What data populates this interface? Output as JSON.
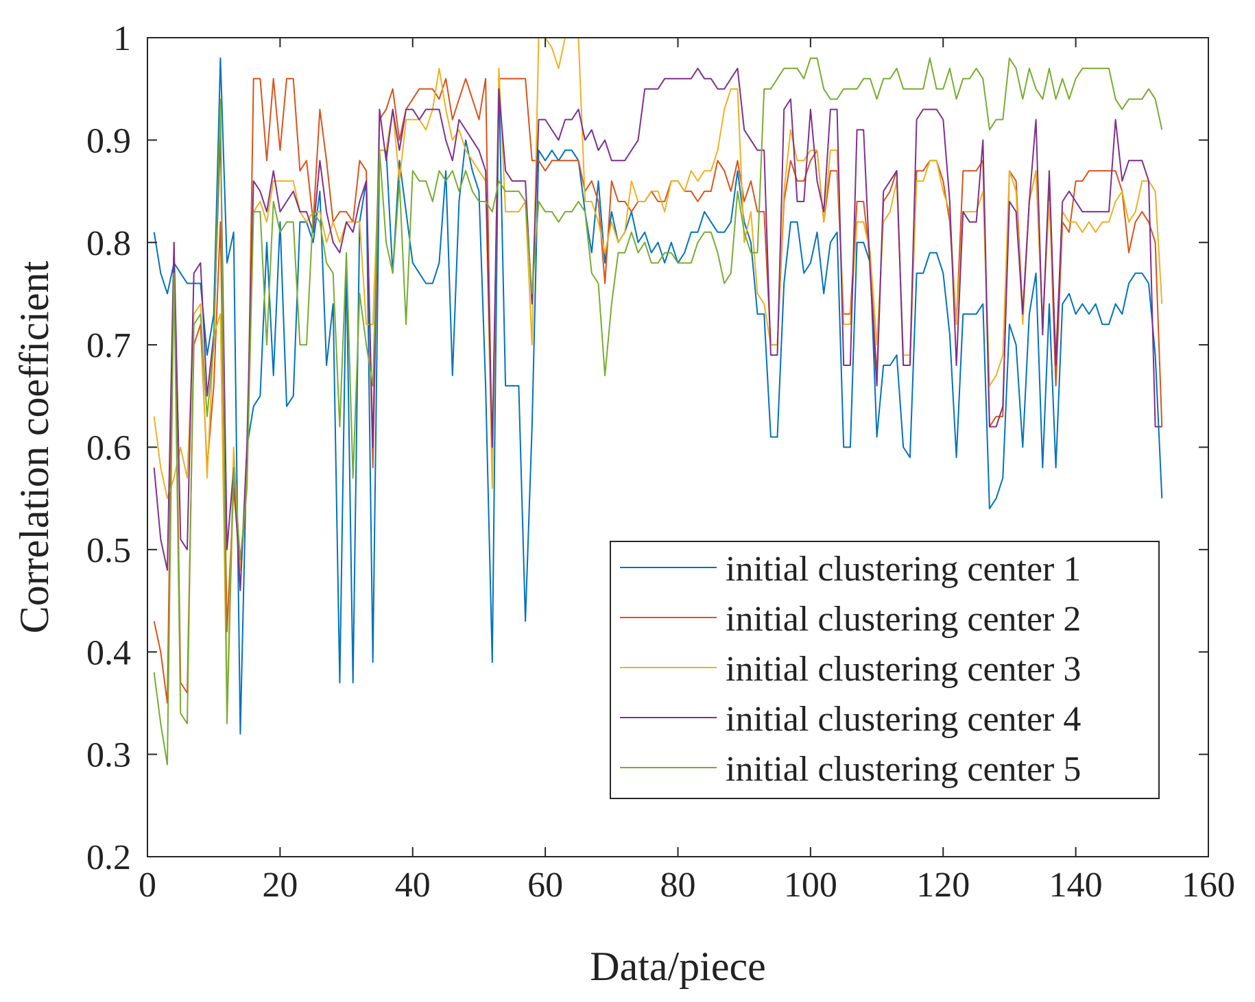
{
  "chart_data": {
    "type": "line",
    "title": "",
    "xlabel": "Data/piece",
    "ylabel": "Correlation coefficient",
    "xlim": [
      0,
      160
    ],
    "ylim": [
      0.2,
      1
    ],
    "xticks": [
      0,
      20,
      40,
      60,
      80,
      100,
      120,
      140,
      160
    ],
    "yticks": [
      0.2,
      0.3,
      0.4,
      0.5,
      0.6,
      0.7,
      0.8,
      0.9,
      1
    ],
    "xtick_labels": [
      "0",
      "20",
      "40",
      "60",
      "80",
      "100",
      "120",
      "140",
      "160"
    ],
    "ytick_labels": [
      "0.2",
      "0.3",
      "0.4",
      "0.5",
      "0.6",
      "0.7",
      "0.8",
      "0.9",
      "1"
    ],
    "grid": false,
    "legend_position": "bottom-right",
    "x": [
      1,
      2,
      3,
      4,
      5,
      6,
      7,
      8,
      9,
      10,
      11,
      12,
      13,
      14,
      15,
      16,
      17,
      18,
      19,
      20,
      21,
      22,
      23,
      24,
      25,
      26,
      27,
      28,
      29,
      30,
      31,
      32,
      33,
      34,
      35,
      36,
      37,
      38,
      39,
      40,
      41,
      42,
      43,
      44,
      45,
      46,
      47,
      48,
      49,
      50,
      51,
      52,
      53,
      54,
      55,
      56,
      57,
      58,
      59,
      60,
      61,
      62,
      63,
      64,
      65,
      66,
      67,
      68,
      69,
      70,
      71,
      72,
      73,
      74,
      75,
      76,
      77,
      78,
      79,
      80,
      81,
      82,
      83,
      84,
      85,
      86,
      87,
      88,
      89,
      90,
      91,
      92,
      93,
      94,
      95,
      96,
      97,
      98,
      99,
      100,
      101,
      102,
      103,
      104,
      105,
      106,
      107,
      108,
      109,
      110,
      111,
      112,
      113,
      114,
      115,
      116,
      117,
      118,
      119,
      120,
      121,
      122,
      123,
      124,
      125,
      126,
      127,
      128,
      129,
      130,
      131,
      132,
      133,
      134,
      135,
      136,
      137,
      138,
      139,
      140,
      141,
      142,
      143,
      144,
      145,
      146,
      147,
      148,
      149,
      150,
      151,
      152,
      153
    ],
    "series": [
      {
        "name": "initial clustering center 1",
        "color": "#0072BD",
        "values": [
          0.81,
          0.77,
          0.75,
          0.78,
          0.77,
          0.76,
          0.76,
          0.76,
          0.69,
          0.73,
          0.98,
          0.78,
          0.81,
          0.32,
          0.6,
          0.64,
          0.65,
          0.8,
          0.67,
          0.82,
          0.64,
          0.65,
          0.82,
          0.82,
          0.8,
          0.85,
          0.68,
          0.74,
          0.37,
          0.78,
          0.37,
          0.82,
          0.86,
          0.39,
          0.89,
          0.89,
          0.77,
          0.88,
          0.83,
          0.78,
          0.77,
          0.76,
          0.76,
          0.78,
          0.87,
          0.67,
          0.84,
          0.9,
          0.87,
          0.85,
          0.66,
          0.39,
          0.96,
          0.66,
          0.66,
          0.66,
          0.43,
          0.62,
          0.89,
          0.88,
          0.89,
          0.88,
          0.89,
          0.89,
          0.88,
          0.83,
          0.79,
          0.86,
          0.78,
          0.83,
          0.8,
          0.81,
          0.83,
          0.8,
          0.81,
          0.79,
          0.8,
          0.78,
          0.8,
          0.78,
          0.79,
          0.81,
          0.81,
          0.83,
          0.82,
          0.81,
          0.81,
          0.82,
          0.87,
          0.82,
          0.8,
          0.73,
          0.73,
          0.61,
          0.61,
          0.76,
          0.82,
          0.82,
          0.77,
          0.78,
          0.81,
          0.75,
          0.8,
          0.81,
          0.6,
          0.6,
          0.8,
          0.8,
          0.78,
          0.61,
          0.68,
          0.68,
          0.69,
          0.6,
          0.59,
          0.77,
          0.77,
          0.79,
          0.79,
          0.77,
          0.71,
          0.59,
          0.73,
          0.73,
          0.73,
          0.74,
          0.54,
          0.55,
          0.57,
          0.72,
          0.7,
          0.6,
          0.73,
          0.77,
          0.58,
          0.74,
          0.58,
          0.74,
          0.75,
          0.73,
          0.74,
          0.73,
          0.74,
          0.72,
          0.72,
          0.74,
          0.73,
          0.76,
          0.77,
          0.77,
          0.76,
          0.69,
          0.55
        ]
      },
      {
        "name": "initial clustering center 2",
        "color": "#D95319",
        "values": [
          0.43,
          0.4,
          0.35,
          0.8,
          0.37,
          0.36,
          0.7,
          0.72,
          0.58,
          0.66,
          0.82,
          0.42,
          0.56,
          0.48,
          0.56,
          0.96,
          0.96,
          0.88,
          0.96,
          0.89,
          0.96,
          0.96,
          0.87,
          0.88,
          0.82,
          0.93,
          0.88,
          0.82,
          0.83,
          0.83,
          0.82,
          0.88,
          0.87,
          0.58,
          0.92,
          0.93,
          0.95,
          0.9,
          0.93,
          0.94,
          0.95,
          0.95,
          0.95,
          0.94,
          0.96,
          0.92,
          0.94,
          0.96,
          0.94,
          0.92,
          0.96,
          0.58,
          0.96,
          0.96,
          0.96,
          0.96,
          0.96,
          0.88,
          0.88,
          0.87,
          0.88,
          0.88,
          0.88,
          0.88,
          0.88,
          0.85,
          0.86,
          0.84,
          0.76,
          0.86,
          0.84,
          0.84,
          0.83,
          0.84,
          0.84,
          0.85,
          0.84,
          0.84,
          0.86,
          0.86,
          0.85,
          0.85,
          0.84,
          0.85,
          0.85,
          0.88,
          0.87,
          0.85,
          0.88,
          0.84,
          0.86,
          0.83,
          0.83,
          0.7,
          0.7,
          0.84,
          0.88,
          0.86,
          0.86,
          0.88,
          0.89,
          0.82,
          0.87,
          0.87,
          0.73,
          0.73,
          0.84,
          0.84,
          0.78,
          0.67,
          0.84,
          0.85,
          0.87,
          0.68,
          0.68,
          0.87,
          0.87,
          0.88,
          0.88,
          0.86,
          0.82,
          0.72,
          0.87,
          0.87,
          0.87,
          0.88,
          0.62,
          0.63,
          0.63,
          0.87,
          0.86,
          0.73,
          0.84,
          0.87,
          0.72,
          0.85,
          0.66,
          0.82,
          0.81,
          0.86,
          0.86,
          0.87,
          0.87,
          0.87,
          0.87,
          0.87,
          0.85,
          0.79,
          0.82,
          0.83,
          0.82,
          0.8,
          0.62
        ]
      },
      {
        "name": "initial clustering center 3",
        "color": "#EDB120",
        "values": [
          0.63,
          0.58,
          0.55,
          0.57,
          0.6,
          0.57,
          0.73,
          0.74,
          0.57,
          0.71,
          0.73,
          0.34,
          0.6,
          0.48,
          0.58,
          0.83,
          0.84,
          0.82,
          0.86,
          0.86,
          0.86,
          0.86,
          0.83,
          0.82,
          0.83,
          0.83,
          0.8,
          0.82,
          0.8,
          0.82,
          0.82,
          0.82,
          0.72,
          0.72,
          0.89,
          0.89,
          0.93,
          0.86,
          0.92,
          0.92,
          0.92,
          0.91,
          0.93,
          0.97,
          0.93,
          0.9,
          0.91,
          0.89,
          0.88,
          0.87,
          0.86,
          0.56,
          0.97,
          0.83,
          0.83,
          0.83,
          0.84,
          0.7,
          1,
          1,
          0.99,
          0.97,
          1,
          1,
          1,
          0.84,
          0.84,
          0.82,
          0.79,
          0.82,
          0.8,
          0.81,
          0.86,
          0.84,
          0.84,
          0.85,
          0.85,
          0.83,
          0.86,
          0.86,
          0.85,
          0.87,
          0.86,
          0.87,
          0.87,
          0.89,
          0.93,
          0.95,
          0.95,
          0.8,
          0.83,
          0.75,
          0.74,
          0.7,
          0.7,
          0.85,
          0.91,
          0.88,
          0.88,
          0.89,
          0.89,
          0.82,
          0.89,
          0.89,
          0.72,
          0.72,
          0.82,
          0.82,
          0.79,
          0.7,
          0.82,
          0.83,
          0.86,
          0.69,
          0.69,
          0.86,
          0.86,
          0.88,
          0.88,
          0.85,
          0.83,
          0.72,
          0.83,
          0.83,
          0.83,
          0.85,
          0.66,
          0.67,
          0.69,
          0.87,
          0.85,
          0.72,
          0.84,
          0.87,
          0.72,
          0.84,
          0.69,
          0.83,
          0.82,
          0.82,
          0.81,
          0.82,
          0.81,
          0.82,
          0.82,
          0.84,
          0.85,
          0.82,
          0.83,
          0.86,
          0.86,
          0.85,
          0.74
        ]
      },
      {
        "name": "initial clustering center 4",
        "color": "#7E2F8E",
        "values": [
          0.58,
          0.51,
          0.48,
          0.8,
          0.51,
          0.5,
          0.77,
          0.78,
          0.65,
          0.71,
          0.91,
          0.5,
          0.58,
          0.46,
          0.6,
          0.86,
          0.85,
          0.83,
          0.87,
          0.83,
          0.84,
          0.85,
          0.83,
          0.83,
          0.81,
          0.88,
          0.83,
          0.8,
          0.79,
          0.82,
          0.81,
          0.84,
          0.86,
          0.6,
          0.93,
          0.88,
          0.93,
          0.89,
          0.93,
          0.93,
          0.92,
          0.93,
          0.93,
          0.93,
          0.9,
          0.88,
          0.92,
          0.91,
          0.9,
          0.89,
          0.87,
          0.6,
          0.95,
          0.87,
          0.86,
          0.86,
          0.86,
          0.74,
          0.92,
          0.92,
          0.91,
          0.9,
          0.92,
          0.92,
          0.93,
          0.9,
          0.91,
          0.89,
          0.9,
          0.88,
          0.88,
          0.88,
          0.89,
          0.9,
          0.95,
          0.95,
          0.95,
          0.96,
          0.96,
          0.96,
          0.96,
          0.96,
          0.97,
          0.96,
          0.96,
          0.95,
          0.95,
          0.96,
          0.97,
          0.91,
          0.9,
          0.89,
          0.89,
          0.69,
          0.69,
          0.93,
          0.94,
          0.84,
          0.84,
          0.93,
          0.86,
          0.83,
          0.93,
          0.93,
          0.68,
          0.68,
          0.91,
          0.91,
          0.77,
          0.66,
          0.85,
          0.86,
          0.87,
          0.68,
          0.68,
          0.92,
          0.93,
          0.93,
          0.93,
          0.92,
          0.84,
          0.68,
          0.83,
          0.82,
          0.82,
          0.9,
          0.62,
          0.62,
          0.64,
          0.84,
          0.83,
          0.73,
          0.84,
          0.92,
          0.71,
          0.87,
          0.68,
          0.84,
          0.85,
          0.84,
          0.83,
          0.83,
          0.83,
          0.83,
          0.83,
          0.92,
          0.86,
          0.88,
          0.88,
          0.88,
          0.86,
          0.62,
          0.62
        ]
      },
      {
        "name": "initial clustering center 5",
        "color": "#77AC30",
        "values": [
          0.38,
          0.33,
          0.29,
          0.77,
          0.34,
          0.33,
          0.72,
          0.73,
          0.63,
          0.7,
          0.94,
          0.33,
          0.58,
          0.49,
          0.56,
          0.83,
          0.83,
          0.7,
          0.84,
          0.81,
          0.82,
          0.82,
          0.7,
          0.7,
          0.83,
          0.82,
          0.78,
          0.77,
          0.62,
          0.79,
          0.57,
          0.75,
          0.7,
          0.66,
          0.89,
          0.8,
          0.77,
          0.86,
          0.72,
          0.87,
          0.86,
          0.86,
          0.84,
          0.87,
          0.86,
          0.87,
          0.85,
          0.87,
          0.85,
          0.84,
          0.84,
          0.83,
          0.86,
          0.85,
          0.85,
          0.85,
          0.84,
          0.75,
          0.84,
          0.83,
          0.83,
          0.82,
          0.83,
          0.83,
          0.84,
          0.83,
          0.77,
          0.76,
          0.67,
          0.74,
          0.79,
          0.79,
          0.81,
          0.79,
          0.8,
          0.78,
          0.78,
          0.79,
          0.79,
          0.78,
          0.78,
          0.78,
          0.8,
          0.81,
          0.81,
          0.79,
          0.76,
          0.77,
          0.85,
          0.81,
          0.79,
          0.79,
          0.95,
          0.95,
          0.96,
          0.97,
          0.97,
          0.97,
          0.96,
          0.98,
          0.98,
          0.95,
          0.94,
          0.94,
          0.95,
          0.95,
          0.95,
          0.96,
          0.96,
          0.94,
          0.96,
          0.96,
          0.97,
          0.95,
          0.95,
          0.95,
          0.95,
          0.98,
          0.95,
          0.95,
          0.97,
          0.94,
          0.96,
          0.96,
          0.97,
          0.96,
          0.91,
          0.92,
          0.92,
          0.98,
          0.97,
          0.94,
          0.97,
          0.95,
          0.94,
          0.97,
          0.94,
          0.96,
          0.94,
          0.96,
          0.97,
          0.97,
          0.97,
          0.97,
          0.97,
          0.94,
          0.93,
          0.94,
          0.94,
          0.94,
          0.95,
          0.94,
          0.91
        ]
      }
    ]
  }
}
